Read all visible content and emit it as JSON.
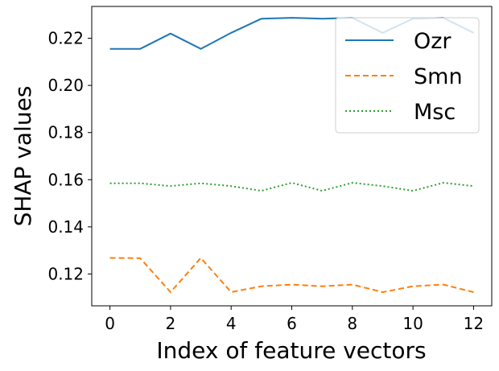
{
  "chart_data": {
    "type": "line",
    "title": "",
    "xlabel": "Index of feature vectors",
    "ylabel": "SHAP values",
    "x": [
      0,
      1,
      2,
      3,
      4,
      5,
      6,
      7,
      8,
      9,
      10,
      11,
      12
    ],
    "xlim": [
      -0.6,
      12.6
    ],
    "ylim": [
      0.1065,
      0.2335
    ],
    "xticks": [
      0,
      2,
      4,
      6,
      8,
      10,
      12
    ],
    "yticks": [
      0.12,
      0.14,
      0.16,
      0.18,
      0.2,
      0.22
    ],
    "ytick_labels": [
      "0.12",
      "0.14",
      "0.16",
      "0.18",
      "0.20",
      "0.22"
    ],
    "grid": false,
    "legend_position": "top-right",
    "series": [
      {
        "name": "Ozr",
        "color": "#1f77b4",
        "linestyle": "solid",
        "values": [
          0.2155,
          0.2155,
          0.222,
          0.2155,
          0.2223,
          0.2283,
          0.2287,
          0.2283,
          0.2287,
          0.2223,
          0.2283,
          0.2287,
          0.2223
        ]
      },
      {
        "name": "Smn",
        "color": "#ff7f0e",
        "linestyle": "dashed",
        "values": [
          0.1268,
          0.1267,
          0.1123,
          0.1268,
          0.1123,
          0.1148,
          0.1155,
          0.1148,
          0.1155,
          0.1123,
          0.1148,
          0.1155,
          0.1123
        ]
      },
      {
        "name": "Msc",
        "color": "#2ca02c",
        "linestyle": "dotted",
        "values": [
          0.1585,
          0.1585,
          0.1573,
          0.1585,
          0.1573,
          0.1553,
          0.1587,
          0.1553,
          0.1587,
          0.1573,
          0.1553,
          0.1587,
          0.1573
        ]
      }
    ]
  }
}
